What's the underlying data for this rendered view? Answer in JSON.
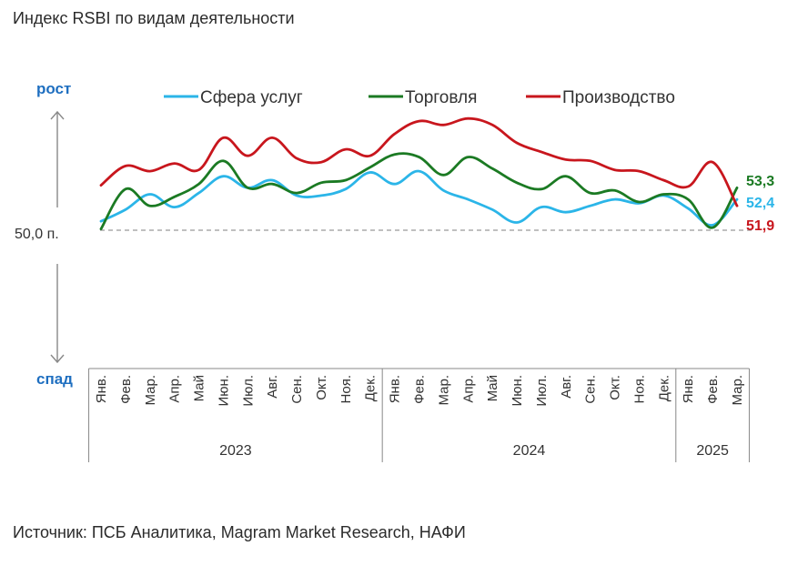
{
  "title": "Индекс RSBI по видам деятельности",
  "source": "Источник: ПСБ Аналитика, Magram Market Research, НАФИ",
  "axis": {
    "up_label": "рост",
    "down_label": "спад",
    "reference_label": "50,0 п."
  },
  "colors": {
    "services": "#2bb5e8",
    "trade": "#1b7a23",
    "production": "#c8161d",
    "axis_words": "#1f6fc0"
  },
  "chart_data": {
    "type": "line",
    "title": "Индекс RSBI по видам деятельности",
    "categories": [
      "Янв.",
      "Фев.",
      "Мар.",
      "Апр.",
      "Май",
      "Июн.",
      "Июл.",
      "Авг.",
      "Сен.",
      "Окт.",
      "Ноя.",
      "Дек.",
      "Янв.",
      "Фев.",
      "Мар.",
      "Апр.",
      "Май",
      "Июн.",
      "Июл.",
      "Авг.",
      "Сен.",
      "Окт.",
      "Ноя.",
      "Дек.",
      "Янв.",
      "Фев.",
      "Мар."
    ],
    "year_groups": [
      {
        "label": "2023",
        "start": 0,
        "count": 12
      },
      {
        "label": "2024",
        "start": 12,
        "count": 12
      },
      {
        "label": "2025",
        "start": 24,
        "count": 3
      }
    ],
    "reference": 50.0,
    "ylim": [
      44.3,
      59.0
    ],
    "legend_position": "top",
    "series": [
      {
        "name": "Сфера услуг",
        "color": "#2bb5e8",
        "values": [
          50.7,
          51.6,
          52.8,
          51.8,
          52.9,
          54.2,
          53.3,
          53.9,
          52.7,
          52.7,
          53.2,
          54.5,
          53.6,
          54.6,
          53.1,
          52.4,
          51.6,
          50.6,
          51.8,
          51.4,
          51.9,
          52.4,
          52.1,
          52.7,
          51.7,
          50.4,
          52.4
        ],
        "end_label": "52,4"
      },
      {
        "name": "Торговля",
        "color": "#1b7a23",
        "values": [
          50.1,
          53.2,
          51.9,
          52.6,
          53.6,
          55.4,
          53.3,
          53.6,
          52.9,
          53.7,
          53.9,
          54.9,
          55.9,
          55.7,
          54.3,
          55.7,
          54.8,
          53.7,
          53.2,
          54.2,
          52.9,
          53.1,
          52.2,
          52.8,
          52.4,
          50.2,
          53.3
        ],
        "end_label": "53,3"
      },
      {
        "name": "Производство",
        "color": "#c8161d",
        "values": [
          53.5,
          55.0,
          54.6,
          55.2,
          54.7,
          57.2,
          55.8,
          57.2,
          55.6,
          55.3,
          56.3,
          55.8,
          57.5,
          58.5,
          58.2,
          58.7,
          58.2,
          56.8,
          56.1,
          55.5,
          55.4,
          54.7,
          54.6,
          53.9,
          53.4,
          55.3,
          51.9
        ],
        "end_label": "51,9"
      }
    ]
  }
}
